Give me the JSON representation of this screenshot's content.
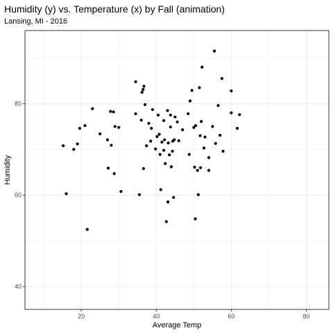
{
  "chart_data": {
    "type": "scatter",
    "title": "Humidity (y) vs. Temperature (x) by Fall (animation)",
    "subtitle": "Lansing, MI - 2016",
    "xlabel": "Average Temp",
    "ylabel": "Humidity",
    "xlim": [
      5,
      86
    ],
    "ylim": [
      35,
      96
    ],
    "xticks": [
      20,
      40,
      60,
      80
    ],
    "yticks": [
      40,
      60,
      80
    ],
    "grid": true,
    "legend": "none",
    "point_color": "#000000",
    "points": [
      [
        15.2,
        70.8
      ],
      [
        16.0,
        60.3
      ],
      [
        18.0,
        70.0
      ],
      [
        19.0,
        71.2
      ],
      [
        19.6,
        74.6
      ],
      [
        21.0,
        75.2
      ],
      [
        21.6,
        52.5
      ],
      [
        23.0,
        78.9
      ],
      [
        25.0,
        73.4
      ],
      [
        27.0,
        72.1
      ],
      [
        27.2,
        65.9
      ],
      [
        27.8,
        78.3
      ],
      [
        28.0,
        70.9
      ],
      [
        28.6,
        78.2
      ],
      [
        28.8,
        64.7
      ],
      [
        29.0,
        75.0
      ],
      [
        30.0,
        74.8
      ],
      [
        30.6,
        60.8
      ],
      [
        34.5,
        84.8
      ],
      [
        34.5,
        77.8
      ],
      [
        35.5,
        60.1
      ],
      [
        36.0,
        76.4
      ],
      [
        36.2,
        82.5
      ],
      [
        36.5,
        83.1
      ],
      [
        36.6,
        65.8
      ],
      [
        36.7,
        83.8
      ],
      [
        37.0,
        79.8
      ],
      [
        37.4,
        70.8
      ],
      [
        38.0,
        75.7
      ],
      [
        38.5,
        71.8
      ],
      [
        38.7,
        74.6
      ],
      [
        39.0,
        78.7
      ],
      [
        39.8,
        70.1
      ],
      [
        40.2,
        72.8
      ],
      [
        40.5,
        77.5
      ],
      [
        40.8,
        73.3
      ],
      [
        41.0,
        68.9
      ],
      [
        41.2,
        61.2
      ],
      [
        41.5,
        71.6
      ],
      [
        42.0,
        76.3
      ],
      [
        42.0,
        69.8
      ],
      [
        42.2,
        72.1
      ],
      [
        42.4,
        66.9
      ],
      [
        42.7,
        54.2
      ],
      [
        43.0,
        78.5
      ],
      [
        43.1,
        58.5
      ],
      [
        43.2,
        71.4
      ],
      [
        43.5,
        68.8
      ],
      [
        43.8,
        77.5
      ],
      [
        43.8,
        74.9
      ],
      [
        44.0,
        66.2
      ],
      [
        44.3,
        69.6
      ],
      [
        44.4,
        71.8
      ],
      [
        44.6,
        59.5
      ],
      [
        44.8,
        72.1
      ],
      [
        45.0,
        77.1
      ],
      [
        45.6,
        76.0
      ],
      [
        46.0,
        71.9
      ],
      [
        47.0,
        74.3
      ],
      [
        48.5,
        77.8
      ],
      [
        48.8,
        68.9
      ],
      [
        49.0,
        80.6
      ],
      [
        49.5,
        82.9
      ],
      [
        50.0,
        74.8
      ],
      [
        50.2,
        66.1
      ],
      [
        50.4,
        54.8
      ],
      [
        50.5,
        75.2
      ],
      [
        51.0,
        65.4
      ],
      [
        51.2,
        60.1
      ],
      [
        51.5,
        83.5
      ],
      [
        51.7,
        73.0
      ],
      [
        51.8,
        66.0
      ],
      [
        52.0,
        76.1
      ],
      [
        52.2,
        88.0
      ],
      [
        52.7,
        70.3
      ],
      [
        53.0,
        72.7
      ],
      [
        54.0,
        68.2
      ],
      [
        54.0,
        65.4
      ],
      [
        55.0,
        75.0
      ],
      [
        55.5,
        91.5
      ],
      [
        55.8,
        71.3
      ],
      [
        56.5,
        79.6
      ],
      [
        57.0,
        73.1
      ],
      [
        57.5,
        85.5
      ],
      [
        57.8,
        69.6
      ],
      [
        60.0,
        82.8
      ],
      [
        60.0,
        78.0
      ],
      [
        61.6,
        74.6
      ],
      [
        62.2,
        77.6
      ]
    ]
  }
}
